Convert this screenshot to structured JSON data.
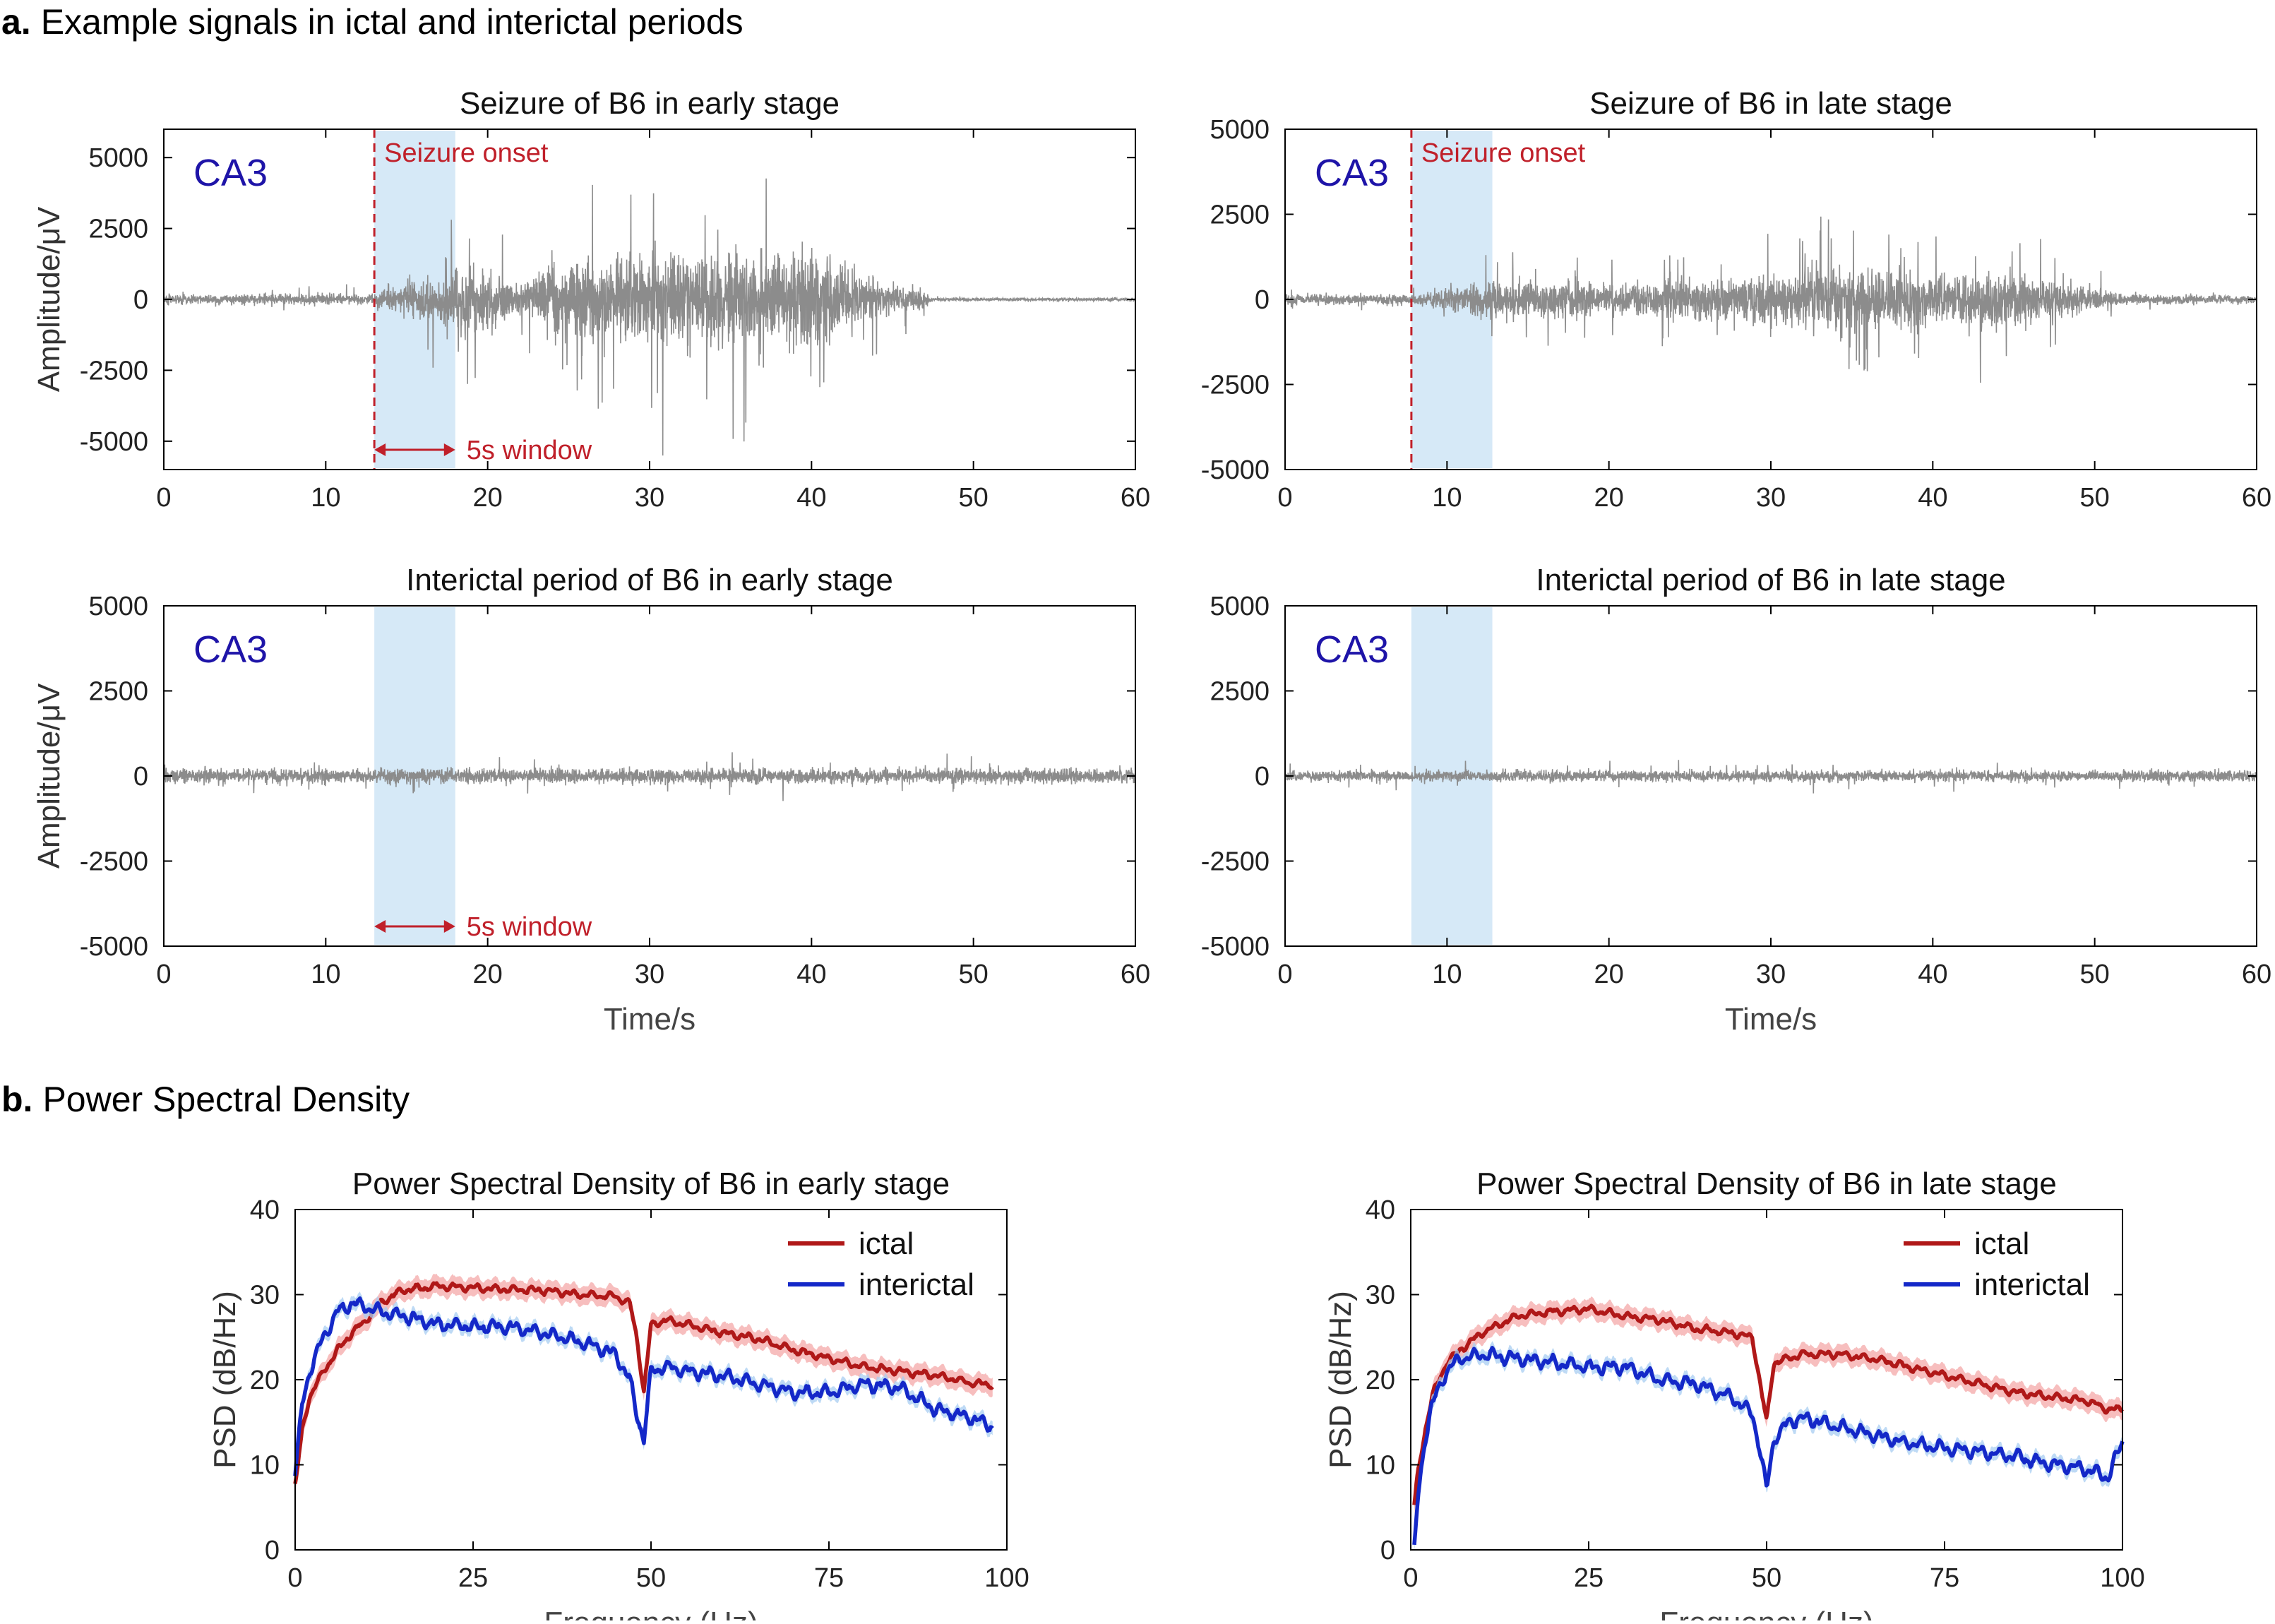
{
  "sections": {
    "a": {
      "letter": "a.",
      "title": "Example signals in ictal and interictal periods"
    },
    "b": {
      "letter": "b.",
      "title": "Power Spectral Density"
    }
  },
  "colors": {
    "signal": "#8c8c8c",
    "window_fill": "#d6e9f7",
    "annotation": "#c0202a",
    "region_label": "#1e14a8",
    "ictal": "#b01818",
    "ictal_band": "#f4a8a8",
    "interictal": "#1428c8",
    "interictal_band": "#a8cdf2"
  },
  "chart_data": [
    {
      "type": "line",
      "title": "Seizure of B6 in early stage",
      "xlabel": "",
      "ylabel": "Amplitude/μV",
      "xlim": [
        0,
        60
      ],
      "ylim": [
        -6000,
        6000
      ],
      "xticks": [
        0,
        10,
        20,
        30,
        40,
        50,
        60
      ],
      "yticks": [
        -5000,
        -2500,
        0,
        2500,
        5000
      ],
      "region_label": "CA3",
      "window": [
        13,
        18
      ],
      "onset": 13,
      "onset_label": "Seizure onset",
      "window_label": "5s window",
      "envelope": {
        "t": [
          0,
          13,
          19,
          20,
          22,
          24,
          26,
          30,
          35,
          40,
          44,
          47,
          47.5,
          60
        ],
        "amp": [
          500,
          500,
          3800,
          3200,
          1500,
          3500,
          4000,
          4200,
          5200,
          4200,
          2000,
          800,
          150,
          150
        ]
      }
    },
    {
      "type": "line",
      "title": "Seizure of B6 in late stage",
      "xlabel": "",
      "ylabel": "",
      "xlim": [
        0,
        60
      ],
      "ylim": [
        -5000,
        5000
      ],
      "xticks": [
        0,
        10,
        20,
        30,
        40,
        50,
        60
      ],
      "yticks": [
        -5000,
        -2500,
        0,
        2500,
        5000
      ],
      "region_label": "CA3",
      "window": [
        7.8,
        12.8
      ],
      "onset": 7.8,
      "onset_label": "Seizure onset",
      "window_label": "",
      "envelope": {
        "t": [
          0,
          7.8,
          12,
          14,
          20,
          25,
          30,
          33,
          35,
          40,
          45,
          50,
          52,
          60
        ],
        "amp": [
          400,
          400,
          1500,
          1500,
          1300,
          1600,
          2000,
          2600,
          2500,
          2000,
          2300,
          1000,
          400,
          300
        ]
      }
    },
    {
      "type": "line",
      "title": "Interictal period of B6 in early stage",
      "xlabel": "Time/s",
      "ylabel": "Amplitude/μV",
      "xlim": [
        0,
        60
      ],
      "ylim": [
        -5000,
        5000
      ],
      "xticks": [
        0,
        10,
        20,
        30,
        40,
        50,
        60
      ],
      "yticks": [
        -5000,
        -2500,
        0,
        2500,
        5000
      ],
      "region_label": "CA3",
      "window": [
        13,
        18
      ],
      "onset": null,
      "onset_label": "",
      "window_label": "5s window",
      "envelope": {
        "t": [
          0,
          60
        ],
        "amp": [
          600,
          600
        ]
      }
    },
    {
      "type": "line",
      "title": "Interictal period of B6 in late stage",
      "xlabel": "Time/s",
      "ylabel": "",
      "xlim": [
        0,
        60
      ],
      "ylim": [
        -5000,
        5000
      ],
      "xticks": [
        0,
        10,
        20,
        30,
        40,
        50,
        60
      ],
      "yticks": [
        -5000,
        -2500,
        0,
        2500,
        5000
      ],
      "region_label": "CA3",
      "window": [
        7.8,
        12.8
      ],
      "onset": null,
      "onset_label": "",
      "window_label": "",
      "envelope": {
        "t": [
          0,
          60
        ],
        "amp": [
          450,
          450
        ]
      }
    },
    {
      "type": "line",
      "title": "Power Spectral Density of B6 in early stage",
      "xlabel": "Frequency (Hz)",
      "ylabel": "PSD (dB/Hz)",
      "xlim": [
        0,
        100
      ],
      "ylim": [
        0,
        40
      ],
      "xticks": [
        0,
        25,
        50,
        75,
        100
      ],
      "yticks": [
        0,
        10,
        20,
        30,
        40
      ],
      "legend_position": "top-right",
      "x": [
        0,
        1,
        2,
        4,
        6,
        8,
        10,
        12,
        15,
        20,
        25,
        30,
        35,
        40,
        45,
        47,
        48,
        49,
        50,
        52,
        55,
        60,
        65,
        70,
        75,
        80,
        85,
        90,
        95,
        98
      ],
      "series": [
        {
          "name": "ictal",
          "values": [
            7.5,
            14,
            18,
            21,
            23.5,
            25.5,
            27,
            29,
            30.5,
            31,
            30.8,
            30.6,
            30.5,
            30,
            29.8,
            29,
            25,
            18.5,
            26.5,
            27,
            26.5,
            25.5,
            24.8,
            23.5,
            22.5,
            21.5,
            21,
            20.5,
            19.6,
            19.4
          ]
        },
        {
          "name": "interictal",
          "values": [
            9,
            17,
            21,
            25,
            28,
            29,
            28.5,
            28,
            27.5,
            26.5,
            26.3,
            26.2,
            25.5,
            24.5,
            23,
            20,
            16,
            13,
            21,
            21.5,
            21,
            20.5,
            19.5,
            18.5,
            18.5,
            19.5,
            19,
            16.5,
            15.5,
            14.5
          ]
        }
      ]
    },
    {
      "type": "line",
      "title": "Power Spectral Density of B6 in late stage",
      "xlabel": "Frequency (Hz)",
      "ylabel": "PSD (dB/Hz)",
      "xlim": [
        0,
        100
      ],
      "ylim": [
        0,
        40
      ],
      "xticks": [
        0,
        25,
        50,
        75,
        100
      ],
      "yticks": [
        0,
        10,
        20,
        30,
        40
      ],
      "legend_position": "top-right",
      "x": [
        0.5,
        1,
        2,
        3,
        5,
        7,
        10,
        15,
        20,
        25,
        30,
        35,
        40,
        45,
        48,
        49,
        50,
        51,
        53,
        55,
        60,
        65,
        70,
        75,
        80,
        85,
        90,
        95,
        98,
        100
      ],
      "series": [
        {
          "name": "ictal",
          "values": [
            5,
            9,
            14,
            18,
            22,
            23.5,
            25.5,
            27.5,
            28,
            28.3,
            27.5,
            27,
            26,
            25.5,
            25,
            20,
            15,
            22,
            22.5,
            23,
            23,
            22.5,
            21.5,
            20.5,
            19.5,
            18.5,
            18,
            17.5,
            16.5,
            16.5
          ]
        },
        {
          "name": "interictal",
          "values": [
            0,
            6,
            13,
            17,
            21,
            22.5,
            23,
            22.5,
            22,
            21.5,
            21.5,
            20,
            19.5,
            18,
            16,
            12,
            7,
            13,
            15,
            15.5,
            14.5,
            13.5,
            12.5,
            12,
            11.5,
            11,
            10,
            9.5,
            8.5,
            12.8
          ]
        }
      ]
    }
  ]
}
